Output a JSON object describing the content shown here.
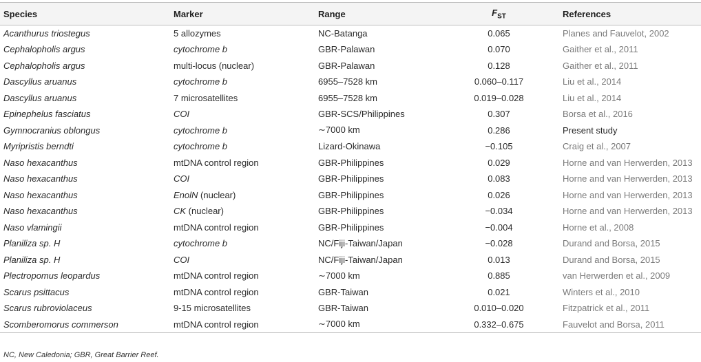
{
  "table": {
    "headers": {
      "species": "Species",
      "marker": "Marker",
      "range": "Range",
      "fst_main": "F",
      "fst_sub": "ST",
      "references": "References"
    },
    "rows": [
      {
        "species": "Acanthurus triostegus",
        "marker": "5 allozymes",
        "marker_italic": false,
        "marker_suffix": "",
        "range": "NC-Batanga",
        "fst": "0.065",
        "reference": "Planes and Fauvelot, 2002"
      },
      {
        "species": "Cephalopholis argus",
        "marker": "cytochrome b",
        "marker_italic": true,
        "marker_suffix": "",
        "range": "GBR-Palawan",
        "fst": "0.070",
        "reference": "Gaither et al., 2011"
      },
      {
        "species": "Cephalopholis argus",
        "marker": "multi-locus (nuclear)",
        "marker_italic": false,
        "marker_suffix": "",
        "range": "GBR-Palawan",
        "fst": "0.128",
        "reference": "Gaither et al., 2011"
      },
      {
        "species": "Dascyllus aruanus",
        "marker": "cytochrome b",
        "marker_italic": true,
        "marker_suffix": "",
        "range": "6955–7528 km",
        "fst": "0.060–0.117",
        "reference": "Liu et al., 2014"
      },
      {
        "species": "Dascyllus aruanus",
        "marker": "7 microsatellites",
        "marker_italic": false,
        "marker_suffix": "",
        "range": "6955–7528 km",
        "fst": "0.019–0.028",
        "reference": "Liu et al., 2014"
      },
      {
        "species": "Epinephelus fasciatus",
        "marker": "COI",
        "marker_italic": true,
        "marker_suffix": "",
        "range": "GBR-SCS/Philippines",
        "fst": "0.307",
        "reference": "Borsa et al., 2016"
      },
      {
        "species": "Gymnocranius oblongus",
        "marker": "cytochrome b",
        "marker_italic": true,
        "marker_suffix": "",
        "range": "∼7000 km",
        "fst": "0.286",
        "reference": "Present study",
        "present": true
      },
      {
        "species": "Myripristis berndti",
        "marker": "cytochrome b",
        "marker_italic": true,
        "marker_suffix": "",
        "range": "Lizard-Okinawa",
        "fst": "−0.105",
        "reference": "Craig et al., 2007"
      },
      {
        "species": "Naso hexacanthus",
        "marker": "mtDNA control region",
        "marker_italic": false,
        "marker_suffix": "",
        "range": "GBR-Philippines",
        "fst": "0.029",
        "reference": "Horne and van Herwerden, 2013"
      },
      {
        "species": "Naso hexacanthus",
        "marker": "COI",
        "marker_italic": true,
        "marker_suffix": "",
        "range": "GBR-Philippines",
        "fst": "0.083",
        "reference": "Horne and van Herwerden, 2013"
      },
      {
        "species": "Naso hexacanthus",
        "marker": "EnolN",
        "marker_italic": true,
        "marker_suffix": " (nuclear)",
        "range": "GBR-Philippines",
        "fst": "0.026",
        "reference": "Horne and van Herwerden, 2013"
      },
      {
        "species": "Naso hexacanthus",
        "marker": "CK",
        "marker_italic": true,
        "marker_suffix": " (nuclear)",
        "range": "GBR-Philippines",
        "fst": "−0.034",
        "reference": "Horne and van Herwerden, 2013"
      },
      {
        "species": "Naso vlamingii",
        "marker": "mtDNA control region",
        "marker_italic": false,
        "marker_suffix": "",
        "range": "GBR-Philippines",
        "fst": "−0.004",
        "reference": "Horne et al., 2008"
      },
      {
        "species": "Planiliza sp. H",
        "marker": "cytochrome b",
        "marker_italic": true,
        "marker_suffix": "",
        "range": "NC/Fiji-Taiwan/Japan",
        "fst": "−0.028",
        "reference": "Durand and Borsa, 2015"
      },
      {
        "species": "Planiliza sp. H",
        "marker": "COI",
        "marker_italic": true,
        "marker_suffix": "",
        "range": "NC/Fiji-Taiwan/Japan",
        "fst": "0.013",
        "reference": "Durand and Borsa, 2015"
      },
      {
        "species": "Plectropomus leopardus",
        "marker": "mtDNA control region",
        "marker_italic": false,
        "marker_suffix": "",
        "range": "∼7000 km",
        "fst": "0.885",
        "reference": "van Herwerden et al., 2009"
      },
      {
        "species": "Scarus psittacus",
        "marker": "mtDNA control region",
        "marker_italic": false,
        "marker_suffix": "",
        "range": "GBR-Taiwan",
        "fst": "0.021",
        "reference": "Winters et al., 2010"
      },
      {
        "species": "Scarus rubroviolaceus",
        "marker": "9-15 microsatellites",
        "marker_italic": false,
        "marker_suffix": "",
        "range": "GBR-Taiwan",
        "fst": "0.010–0.020",
        "reference": "Fitzpatrick et al., 2011"
      },
      {
        "species": "Scomberomorus commerson",
        "marker": "mtDNA control region",
        "marker_italic": false,
        "marker_suffix": "",
        "range": "∼7000 km",
        "fst": "0.332–0.675",
        "reference": "Fauvelot and Borsa, 2011"
      }
    ]
  },
  "footnote": "NC, New Caledonia; GBR, Great Barrier Reef."
}
